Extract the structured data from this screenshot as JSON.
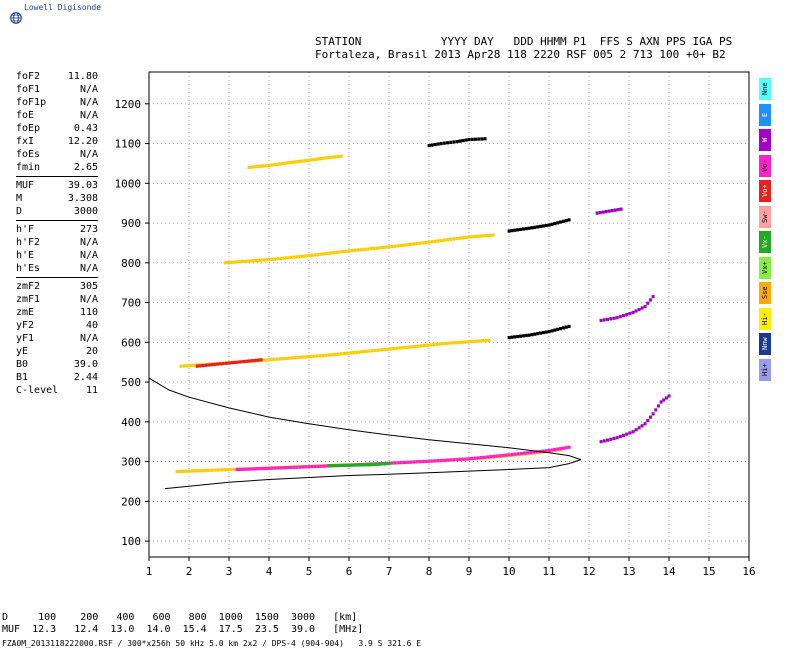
{
  "brand": {
    "name": "Lowell Digisonde",
    "logo_icon": "globe-icon"
  },
  "header": {
    "labels_line": "STATION            YYYY DAY   DDD HHMM P1  FFS S AXN PPS IGA PS",
    "values_line": "Fortaleza, Brasil 2013 Apr28 118 2220 RSF 005 2 713 100 +0+ B2"
  },
  "params": {
    "groups": [
      [
        {
          "label": "foF2",
          "value": "11.80"
        },
        {
          "label": "foF1",
          "value": "N/A"
        },
        {
          "label": "foF1p",
          "value": "N/A"
        },
        {
          "label": "foE",
          "value": "N/A"
        },
        {
          "label": "foEp",
          "value": "0.43"
        },
        {
          "label": "fxI",
          "value": "12.20"
        },
        {
          "label": "foEs",
          "value": "N/A"
        },
        {
          "label": "fmin",
          "value": "2.65"
        }
      ],
      [
        {
          "label": "MUF",
          "value": "39.03"
        },
        {
          "label": "M",
          "value": "3.308"
        },
        {
          "label": "D",
          "value": "3000"
        }
      ],
      [
        {
          "label": "h'F",
          "value": "273"
        },
        {
          "label": "h'F2",
          "value": "N/A"
        },
        {
          "label": "h'E",
          "value": "N/A"
        },
        {
          "label": "h'Es",
          "value": "N/A"
        }
      ],
      [
        {
          "label": "zmF2",
          "value": "305"
        },
        {
          "label": "zmF1",
          "value": "N/A"
        },
        {
          "label": "zmE",
          "value": "110"
        },
        {
          "label": "yF2",
          "value": "40"
        },
        {
          "label": "yF1",
          "value": "N/A"
        },
        {
          "label": "yE",
          "value": "20"
        },
        {
          "label": "B0",
          "value": "39.0"
        },
        {
          "label": "B1",
          "value": "2.44"
        },
        {
          "label": "C-level",
          "value": "11"
        }
      ]
    ]
  },
  "legend": [
    {
      "label": "Nne",
      "color": "#55ffff"
    },
    {
      "label": "E",
      "color": "#1e90ff"
    },
    {
      "label": "W",
      "color": "#a000c8"
    },
    {
      "label": "Vo-",
      "color": "#ff22cc"
    },
    {
      "label": "Vo+",
      "color": "#e82020"
    },
    {
      "label": "Sw-",
      "color": "#ffa0a0"
    },
    {
      "label": "Vx-",
      "color": "#22aa22"
    },
    {
      "label": "Vx+",
      "color": "#88ee44"
    },
    {
      "label": "Sse",
      "color": "#ffaa00"
    },
    {
      "label": "Hi-",
      "color": "#ffee00"
    },
    {
      "label": "Nnw",
      "color": "#1a3a8f"
    },
    {
      "label": "Hi+",
      "color": "#9a9aee"
    }
  ],
  "bottom": {
    "d_line": "D     100    200   400   600   800  1000  1500  3000   [km]",
    "muf_line": "MUF  12.3   12.4  13.0  14.0  15.4  17.5  23.5  39.0   [MHz]",
    "footer": "FZA0M_2013118222000.RSF / 300*x256h 50 kHz 5.0 km 2x2 / DPS-4 (904-904)   3.9 S 321.6 E"
  },
  "chart_data": {
    "type": "scatter",
    "xlim": [
      1,
      16
    ],
    "ylim": [
      60,
      1280
    ],
    "xticks": [
      "1",
      "2",
      "3",
      "4",
      "5",
      "6",
      "7",
      "8",
      "9",
      "10",
      "11",
      "12",
      "13",
      "14",
      "15",
      "16"
    ],
    "yticks": [
      "100",
      "200",
      "300",
      "400",
      "500",
      "600",
      "700",
      "800",
      "900",
      "1000",
      "1100",
      "1200"
    ],
    "grid": true,
    "traces": [
      {
        "name": "",
        "color": "#ffcc00",
        "points": [
          [
            1.7,
            275
          ],
          [
            2.5,
            278
          ],
          [
            3.5,
            282
          ],
          [
            4.5,
            286
          ],
          [
            5.5,
            290
          ],
          [
            6.5,
            293
          ],
          [
            7.5,
            298
          ],
          [
            8.5,
            303
          ],
          [
            9.5,
            310
          ],
          [
            10.5,
            320
          ],
          [
            11.3,
            330
          ]
        ]
      },
      {
        "name": "",
        "color": "#ffcc00",
        "points": [
          [
            1.8,
            540
          ],
          [
            2.5,
            545
          ],
          [
            3.5,
            552
          ],
          [
            4.5,
            560
          ],
          [
            5.5,
            568
          ],
          [
            6.5,
            578
          ],
          [
            7.5,
            588
          ],
          [
            8.5,
            598
          ],
          [
            9.5,
            605
          ]
        ]
      },
      {
        "name": "",
        "color": "#ffcc00",
        "points": [
          [
            2.9,
            800
          ],
          [
            4.0,
            808
          ],
          [
            5.0,
            818
          ],
          [
            6.0,
            830
          ],
          [
            7.0,
            840
          ],
          [
            8.0,
            852
          ],
          [
            9.0,
            865
          ],
          [
            9.6,
            870
          ]
        ]
      },
      {
        "name": "",
        "color": "#ffcc00",
        "points": [
          [
            3.5,
            1040
          ],
          [
            4.0,
            1045
          ],
          [
            4.5,
            1052
          ],
          [
            5.0,
            1058
          ],
          [
            5.5,
            1065
          ],
          [
            5.8,
            1068
          ]
        ]
      },
      {
        "name": "",
        "color": "#ff22cc",
        "points": [
          [
            3.2,
            280
          ],
          [
            4.0,
            283
          ],
          [
            5.0,
            287
          ],
          [
            6.0,
            291
          ],
          [
            7.0,
            296
          ],
          [
            8.0,
            301
          ],
          [
            9.0,
            307
          ],
          [
            10.0,
            317
          ],
          [
            11.0,
            328
          ],
          [
            11.5,
            336
          ]
        ]
      },
      {
        "name": "",
        "color": "#22aa22",
        "points": [
          [
            5.5,
            290
          ],
          [
            6.0,
            291
          ],
          [
            6.5,
            292
          ],
          [
            7.0,
            295
          ]
        ]
      },
      {
        "name": "",
        "color": "#e82020",
        "points": [
          [
            2.2,
            540
          ],
          [
            3.0,
            548
          ],
          [
            3.8,
            556
          ]
        ]
      },
      {
        "name": "",
        "color": "#000000",
        "points": [
          [
            10.0,
            612
          ],
          [
            10.5,
            618
          ],
          [
            11.0,
            627
          ],
          [
            11.5,
            640
          ]
        ]
      },
      {
        "name": "",
        "color": "#000000",
        "points": [
          [
            10.0,
            880
          ],
          [
            10.5,
            887
          ],
          [
            11.0,
            895
          ],
          [
            11.5,
            908
          ]
        ]
      },
      {
        "name": "",
        "color": "#a000c8",
        "points": [
          [
            12.2,
            925
          ],
          [
            12.5,
            930
          ],
          [
            12.8,
            935
          ]
        ]
      },
      {
        "name": "",
        "color": "#a000c8",
        "points": [
          [
            12.3,
            655
          ],
          [
            12.7,
            662
          ],
          [
            13.1,
            675
          ],
          [
            13.4,
            690
          ],
          [
            13.6,
            715
          ]
        ]
      },
      {
        "name": "",
        "color": "#a000c8",
        "points": [
          [
            12.3,
            350
          ],
          [
            12.7,
            360
          ],
          [
            13.1,
            375
          ],
          [
            13.4,
            395
          ],
          [
            13.6,
            420
          ],
          [
            13.8,
            450
          ],
          [
            14.0,
            465
          ]
        ]
      },
      {
        "name": "",
        "color": "#000000",
        "points": [
          [
            8.0,
            1095
          ],
          [
            8.3,
            1100
          ],
          [
            8.7,
            1105
          ],
          [
            9.0,
            1110
          ],
          [
            9.4,
            1112
          ]
        ]
      }
    ],
    "profile_upper": [
      [
        1.0,
        510
      ],
      [
        1.5,
        480
      ],
      [
        2.0,
        462
      ],
      [
        3.0,
        435
      ],
      [
        4.0,
        412
      ],
      [
        5.0,
        395
      ],
      [
        6.0,
        380
      ],
      [
        7.0,
        367
      ],
      [
        8.0,
        355
      ],
      [
        9.0,
        345
      ],
      [
        10.0,
        335
      ],
      [
        11.0,
        322
      ],
      [
        11.5,
        315
      ],
      [
        11.8,
        305
      ]
    ],
    "profile_lower": [
      [
        11.8,
        305
      ],
      [
        11.5,
        295
      ],
      [
        11.0,
        285
      ],
      [
        10.0,
        280
      ],
      [
        9.0,
        276
      ],
      [
        8.0,
        272
      ],
      [
        7.0,
        268
      ],
      [
        6.0,
        265
      ],
      [
        5.0,
        260
      ],
      [
        4.0,
        255
      ],
      [
        3.0,
        248
      ],
      [
        2.0,
        238
      ],
      [
        1.4,
        232
      ]
    ]
  }
}
